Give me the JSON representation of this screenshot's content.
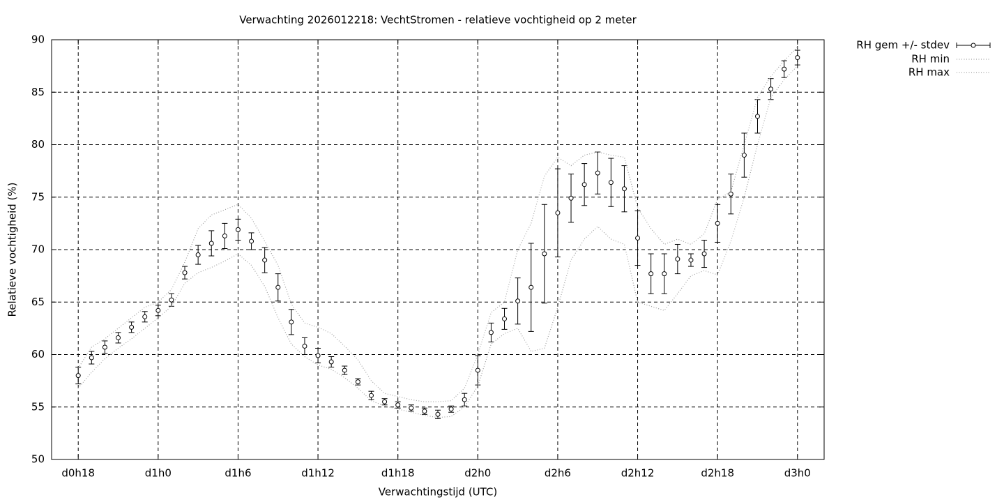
{
  "chart_data": {
    "type": "errorbar-line",
    "title": "Verwachting 2026012218: VechtStromen - relatieve vochtigheid op 2 meter",
    "xlabel": "Verwachtingstijd (UTC)",
    "ylabel": "Relatieve vochtigheid (%)",
    "x": [
      18,
      19,
      20,
      21,
      22,
      23,
      24,
      25,
      26,
      27,
      28,
      29,
      30,
      31,
      32,
      33,
      34,
      35,
      36,
      37,
      38,
      39,
      40,
      41,
      42,
      43,
      44,
      45,
      46,
      47,
      48,
      49,
      50,
      51,
      52,
      53,
      54,
      55,
      56,
      57,
      58,
      59,
      60,
      61,
      62,
      63,
      64,
      65,
      66,
      67,
      68,
      69,
      70,
      71,
      72
    ],
    "xlim": [
      16,
      74
    ],
    "xticks": [
      {
        "value": 18,
        "label": "d0h18"
      },
      {
        "value": 24,
        "label": "d1h0"
      },
      {
        "value": 30,
        "label": "d1h6"
      },
      {
        "value": 36,
        "label": "d1h12"
      },
      {
        "value": 42,
        "label": "d1h18"
      },
      {
        "value": 48,
        "label": "d2h0"
      },
      {
        "value": 54,
        "label": "d2h6"
      },
      {
        "value": 60,
        "label": "d2h12"
      },
      {
        "value": 66,
        "label": "d2h18"
      },
      {
        "value": 72,
        "label": "d3h0"
      }
    ],
    "ylim": [
      50,
      90
    ],
    "yticks": [
      50,
      55,
      60,
      65,
      70,
      75,
      80,
      85,
      90
    ],
    "grid": true,
    "legend": "outside-right",
    "series": [
      {
        "name": "RH gem +/- stdev",
        "color": "#000000",
        "style": "errorbars",
        "values": [
          58.0,
          59.7,
          60.7,
          61.6,
          62.6,
          63.6,
          64.2,
          65.2,
          67.8,
          69.5,
          70.6,
          71.3,
          71.9,
          70.8,
          69.0,
          66.4,
          63.1,
          60.8,
          59.9,
          59.3,
          58.5,
          57.4,
          56.1,
          55.5,
          55.2,
          54.9,
          54.6,
          54.3,
          54.8,
          55.7,
          58.5,
          62.1,
          63.4,
          65.1,
          66.4,
          69.6,
          73.5,
          74.9,
          76.2,
          77.3,
          76.4,
          75.8,
          71.1,
          67.7,
          67.7,
          69.1,
          69.0,
          69.6,
          72.5,
          75.3,
          79.0,
          82.7,
          85.3,
          87.2,
          88.3
        ],
        "errors": [
          0.8,
          0.6,
          0.6,
          0.5,
          0.5,
          0.5,
          0.5,
          0.6,
          0.6,
          0.9,
          1.2,
          1.2,
          1.0,
          0.8,
          1.2,
          1.3,
          1.2,
          0.8,
          0.7,
          0.5,
          0.4,
          0.3,
          0.4,
          0.3,
          0.3,
          0.3,
          0.3,
          0.4,
          0.3,
          0.6,
          1.4,
          0.9,
          1.0,
          2.2,
          4.2,
          4.7,
          4.2,
          2.3,
          2.0,
          2.0,
          2.3,
          2.2,
          2.6,
          1.9,
          1.9,
          1.4,
          0.6,
          1.3,
          1.8,
          1.9,
          2.1,
          1.6,
          1.0,
          0.8,
          0.7
        ]
      },
      {
        "name": "RH min",
        "color": "#a0a0a0",
        "style": "dotted",
        "values": [
          56.8,
          58.3,
          59.6,
          60.6,
          61.5,
          62.5,
          63.5,
          64.6,
          66.8,
          67.8,
          68.3,
          68.9,
          69.6,
          68.5,
          66.5,
          63.5,
          61.0,
          59.8,
          59.0,
          58.6,
          57.8,
          56.8,
          55.6,
          55.1,
          54.8,
          54.5,
          54.2,
          54.0,
          54.1,
          55.0,
          57.0,
          61.0,
          62.0,
          62.5,
          60.3,
          60.6,
          64.5,
          69.0,
          71.0,
          72.2,
          71.0,
          70.5,
          65.0,
          64.6,
          64.2,
          65.8,
          67.5,
          68.0,
          67.6,
          70.8,
          75.0,
          80.0,
          84.5,
          86.2,
          87.5
        ]
      },
      {
        "name": "RH max",
        "color": "#a0a0a0",
        "style": "dotted",
        "values": [
          58.7,
          60.7,
          61.5,
          62.5,
          63.5,
          64.5,
          65.0,
          66.2,
          68.8,
          72.0,
          73.3,
          73.8,
          74.3,
          73.0,
          70.8,
          68.5,
          64.8,
          63.0,
          62.6,
          62.0,
          60.8,
          59.5,
          57.5,
          56.3,
          56.0,
          55.7,
          55.5,
          55.5,
          55.6,
          56.8,
          60.0,
          64.0,
          65.0,
          70.0,
          72.5,
          77.0,
          78.8,
          78.0,
          79.0,
          79.3,
          79.0,
          78.8,
          74.0,
          72.0,
          70.5,
          71.0,
          70.5,
          71.5,
          74.8,
          75.5,
          80.0,
          84.5,
          86.5,
          88.0,
          89.3
        ]
      }
    ]
  }
}
